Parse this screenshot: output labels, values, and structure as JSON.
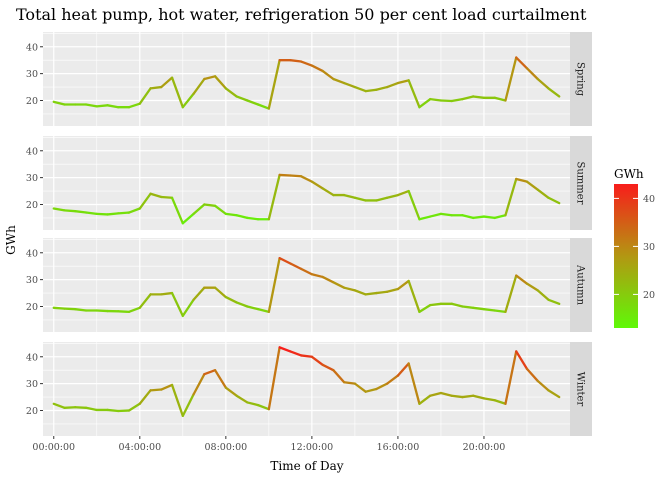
{
  "chart_data": {
    "type": "line",
    "title": "Total heat pump, hot water, refrigeration 50 per cent load curtailment",
    "xlabel": "Time of Day",
    "ylabel": "GWh",
    "x_unit": "hour of day",
    "x_range": [
      -0.5,
      24.0
    ],
    "x_ticks": [
      {
        "value": 0,
        "label": "00:00:00"
      },
      {
        "value": 4,
        "label": "04:00:00"
      },
      {
        "value": 8,
        "label": "08:00:00"
      },
      {
        "value": 12,
        "label": "12:00:00"
      },
      {
        "value": 16,
        "label": "16:00:00"
      },
      {
        "value": 20,
        "label": "20:00:00"
      }
    ],
    "y_range": [
      10.5,
      45.5
    ],
    "y_ticks": [
      20,
      30,
      40
    ],
    "grid": true,
    "facets": [
      "Spring",
      "Summer",
      "Autumn",
      "Winter"
    ],
    "color_scale": {
      "title": "GWh",
      "low_color": "#5ff908",
      "mid_color": "#b39712",
      "high_color": "#f81d1b",
      "domain": [
        13,
        43
      ],
      "breaks": [
        20,
        30,
        40
      ]
    },
    "x": [
      0,
      0.5,
      1,
      1.5,
      2,
      2.5,
      3,
      3.5,
      4,
      4.5,
      5,
      5.5,
      6,
      6.5,
      7,
      7.5,
      8,
      8.5,
      9,
      9.5,
      10,
      10.5,
      11,
      11.5,
      12,
      12.5,
      13,
      13.5,
      14,
      14.5,
      15,
      15.5,
      16,
      16.5,
      17,
      17.5,
      18,
      18.5,
      19,
      19.5,
      20,
      20.5,
      21,
      21.5,
      22,
      22.5,
      23,
      23.5
    ],
    "series": [
      {
        "name": "Spring",
        "values": [
          19.5,
          18.5,
          18.5,
          18.5,
          17.8,
          18.2,
          17.5,
          17.5,
          18.8,
          24.5,
          25.0,
          28.5,
          17.5,
          22.5,
          28.0,
          29.0,
          24.5,
          21.5,
          20.0,
          18.5,
          17.0,
          35.0,
          35.0,
          34.5,
          33.0,
          31.0,
          28.0,
          26.5,
          25.0,
          23.5,
          24.0,
          25.0,
          26.5,
          27.5,
          17.5,
          20.5,
          20.0,
          19.8,
          20.5,
          21.5,
          21.0,
          21.0,
          20.0,
          36.0,
          32.0,
          28.0,
          24.5,
          21.5
        ]
      },
      {
        "name": "Summer",
        "values": [
          18.5,
          17.8,
          17.5,
          17.0,
          16.5,
          16.3,
          16.7,
          17.0,
          18.5,
          24.0,
          22.8,
          22.5,
          13.0,
          16.5,
          20.0,
          19.5,
          16.5,
          16.0,
          15.0,
          14.5,
          14.5,
          31.0,
          30.8,
          30.5,
          28.5,
          26.0,
          23.5,
          23.5,
          22.5,
          21.5,
          21.5,
          22.5,
          23.5,
          25.0,
          14.5,
          15.5,
          16.5,
          16.0,
          16.0,
          15.0,
          15.5,
          15.0,
          16.0,
          29.5,
          28.5,
          25.5,
          22.5,
          20.5
        ]
      },
      {
        "name": "Autumn",
        "values": [
          19.5,
          19.2,
          19.0,
          18.5,
          18.5,
          18.3,
          18.2,
          18.0,
          19.5,
          24.5,
          24.5,
          25.0,
          16.5,
          22.5,
          27.0,
          27.0,
          23.5,
          21.5,
          20.0,
          19.0,
          18.0,
          38.0,
          36.0,
          34.0,
          32.0,
          31.0,
          29.0,
          27.0,
          26.0,
          24.5,
          25.0,
          25.5,
          26.5,
          29.5,
          18.0,
          20.5,
          21.0,
          21.0,
          20.0,
          19.5,
          19.0,
          18.5,
          18.0,
          31.5,
          28.5,
          26.0,
          22.5,
          21.0
        ]
      },
      {
        "name": "Winter",
        "values": [
          22.5,
          21.0,
          21.2,
          21.0,
          20.2,
          20.2,
          19.8,
          20.0,
          22.5,
          27.5,
          27.8,
          29.5,
          18.0,
          26.0,
          33.5,
          35.0,
          28.5,
          25.5,
          23.0,
          22.0,
          20.5,
          43.5,
          42.0,
          40.5,
          40.0,
          37.0,
          35.0,
          30.5,
          30.0,
          27.0,
          28.0,
          30.0,
          33.0,
          37.5,
          22.5,
          25.5,
          26.5,
          25.5,
          25.0,
          25.5,
          24.5,
          23.8,
          22.5,
          42.0,
          35.5,
          31.0,
          27.5,
          25.0
        ]
      }
    ]
  }
}
